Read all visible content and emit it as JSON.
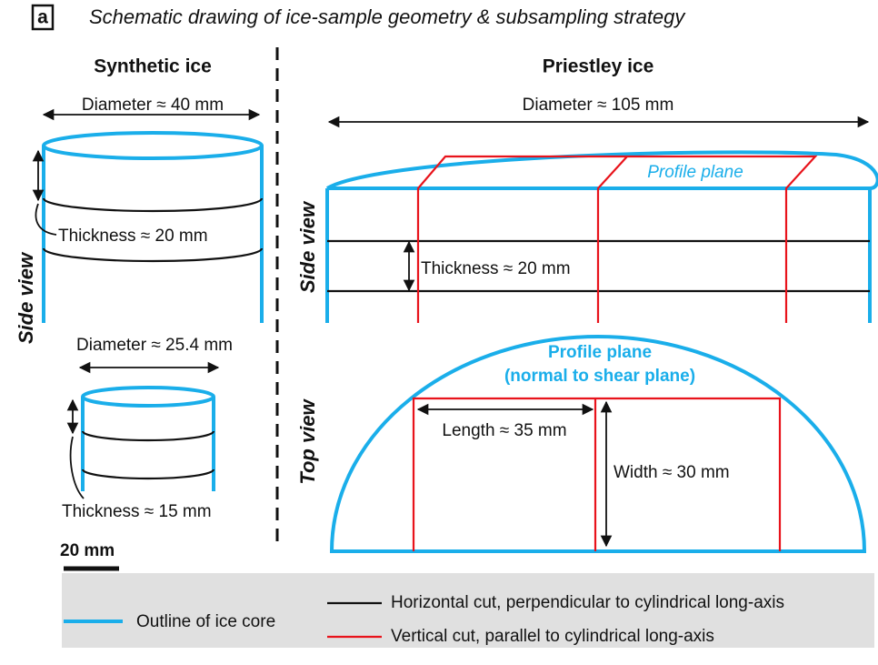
{
  "panel": {
    "label": "a",
    "title": "Schematic drawing of ice-sample geometry & subsampling strategy"
  },
  "synthetic": {
    "heading": "Synthetic ice",
    "view_label": "Side view",
    "large": {
      "diameter": "Diameter ≈ 40 mm",
      "thickness": "Thickness ≈ 20 mm"
    },
    "small": {
      "diameter": "Diameter ≈ 25.4 mm",
      "thickness": "Thickness ≈ 15 mm"
    },
    "scale_bar": "20 mm"
  },
  "priestley": {
    "heading": "Priestley ice",
    "diameter": "Diameter ≈ 105 mm",
    "side_view": {
      "label": "Side view",
      "plane": "Profile plane",
      "thickness": "Thickness ≈ 20 mm"
    },
    "top_view": {
      "label": "Top view",
      "plane": "Profile plane",
      "plane_note": "(normal to shear plane)",
      "length": "Length ≈ 35 mm",
      "width": "Width ≈ 30 mm"
    }
  },
  "legend": {
    "outline": "Outline of ice core",
    "horizontal": "Horizontal cut, perpendicular to cylindrical long-axis",
    "vertical": "Vertical cut, parallel to cylindrical long-axis"
  }
}
